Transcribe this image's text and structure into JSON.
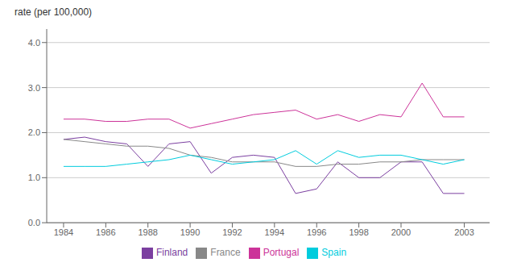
{
  "chart_data": {
    "type": "line",
    "ylabel": "rate (per 100,000)",
    "x": [
      1984,
      1985,
      1986,
      1987,
      1988,
      1989,
      1990,
      1991,
      1992,
      1993,
      1994,
      1995,
      1996,
      1997,
      1998,
      1999,
      2000,
      2001,
      2002,
      2003
    ],
    "series": [
      {
        "name": "Finland",
        "color": "#7B3FA0",
        "values": [
          1.85,
          1.9,
          1.8,
          1.75,
          1.25,
          1.75,
          1.8,
          1.1,
          1.45,
          1.5,
          1.45,
          0.65,
          0.75,
          1.35,
          1.0,
          1.0,
          1.35,
          1.35,
          0.65,
          0.65
        ]
      },
      {
        "name": "France",
        "color": "#888888",
        "values": [
          1.85,
          1.8,
          1.75,
          1.7,
          1.7,
          1.65,
          1.5,
          1.45,
          1.35,
          1.35,
          1.35,
          1.25,
          1.25,
          1.3,
          1.3,
          1.35,
          1.35,
          1.4,
          1.4,
          1.4
        ]
      },
      {
        "name": "Portugal",
        "color": "#CC3399",
        "values": [
          2.3,
          2.3,
          2.25,
          2.25,
          2.3,
          2.3,
          2.1,
          2.2,
          2.3,
          2.4,
          2.45,
          2.5,
          2.3,
          2.4,
          2.25,
          2.4,
          2.35,
          3.1,
          2.35,
          2.35
        ]
      },
      {
        "name": "Spain",
        "color": "#00CCDD",
        "values": [
          1.25,
          1.25,
          1.25,
          1.3,
          1.35,
          1.4,
          1.5,
          1.4,
          1.3,
          1.35,
          1.4,
          1.6,
          1.3,
          1.6,
          1.45,
          1.5,
          1.5,
          1.4,
          1.3,
          1.4
        ]
      }
    ],
    "xlim": [
      1983.2,
      2004.2
    ],
    "xticks": [
      1984,
      1986,
      1988,
      1990,
      1992,
      1994,
      1996,
      1998,
      2000,
      2003
    ],
    "ylim": [
      0.0,
      4.3
    ],
    "yticks": [
      {
        "value": 0,
        "label": "0.0"
      },
      {
        "value": 1,
        "label": "1.0"
      },
      {
        "value": 2,
        "label": "2.0"
      },
      {
        "value": 3,
        "label": "3.0"
      },
      {
        "value": 4,
        "label": "4.0"
      }
    ],
    "grid": true,
    "legend": "bottom"
  }
}
